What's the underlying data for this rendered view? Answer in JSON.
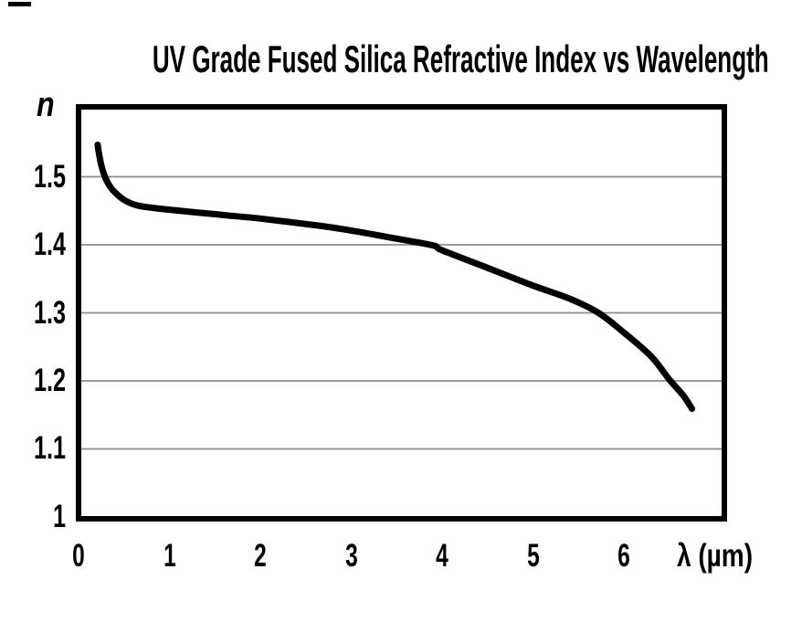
{
  "colors": {
    "ink": "#000000",
    "gridline": "#8c8c8c",
    "background": "#ffffff"
  },
  "chart_data": {
    "type": "line",
    "title": "UV Grade Fused Silica Refractive Index vs Wavelength",
    "xlabel": "λ (µm)",
    "ylabel": "n",
    "xlim": [
      0,
      7.1
    ],
    "ylim": [
      1.0,
      1.6
    ],
    "x_ticks": [
      {
        "value": 0,
        "label": "0"
      },
      {
        "value": 1,
        "label": "1"
      },
      {
        "value": 2,
        "label": "2"
      },
      {
        "value": 3,
        "label": "3"
      },
      {
        "value": 4,
        "label": "4"
      },
      {
        "value": 5,
        "label": "5"
      },
      {
        "value": 6,
        "label": "6"
      }
    ],
    "y_ticks": [
      {
        "value": 1.0,
        "label": "1"
      },
      {
        "value": 1.1,
        "label": "1.1"
      },
      {
        "value": 1.2,
        "label": "1.2"
      },
      {
        "value": 1.3,
        "label": "1.3"
      },
      {
        "value": 1.4,
        "label": "1.4"
      },
      {
        "value": 1.5,
        "label": "1.5"
      }
    ],
    "gridlines": {
      "horizontal_at": [
        1.1,
        1.2,
        1.3,
        1.4,
        1.5
      ],
      "vertical": false
    },
    "legend": "none",
    "series": [
      {
        "color": "#000000",
        "points": [
          [
            0.21,
            1.547
          ],
          [
            0.23,
            1.53
          ],
          [
            0.26,
            1.512
          ],
          [
            0.3,
            1.497
          ],
          [
            0.35,
            1.485
          ],
          [
            0.4,
            1.477
          ],
          [
            0.5,
            1.466
          ],
          [
            0.64,
            1.458
          ],
          [
            0.8,
            1.4545
          ],
          [
            1.0,
            1.4515
          ],
          [
            1.3,
            1.4475
          ],
          [
            1.65,
            1.443
          ],
          [
            2.0,
            1.4385
          ],
          [
            2.65,
            1.428
          ],
          [
            3.0,
            1.421
          ],
          [
            3.5,
            1.409
          ],
          [
            3.9,
            1.399
          ],
          [
            4.0,
            1.392
          ],
          [
            4.5,
            1.366
          ],
          [
            5.0,
            1.34
          ],
          [
            5.4,
            1.321
          ],
          [
            5.72,
            1.3
          ],
          [
            6.0,
            1.271
          ],
          [
            6.3,
            1.236
          ],
          [
            6.5,
            1.202
          ],
          [
            6.65,
            1.179
          ],
          [
            6.75,
            1.159
          ]
        ]
      }
    ]
  }
}
